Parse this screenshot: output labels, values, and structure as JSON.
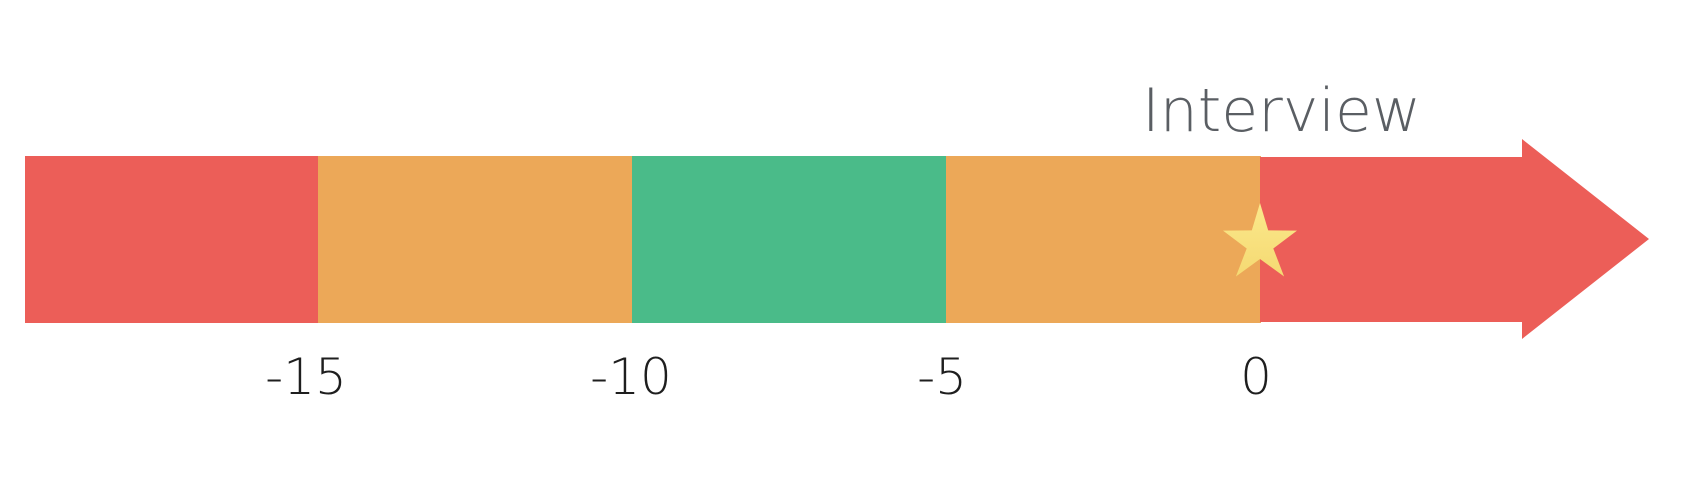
{
  "diagram": {
    "marker_label": "Interview",
    "ticks": [
      "-15",
      "-10",
      "-5",
      "0"
    ],
    "segments": [
      {
        "zone": "red",
        "color": "#ec5e58"
      },
      {
        "zone": "orange",
        "color": "#eca858"
      },
      {
        "zone": "green",
        "color": "#4abb89"
      },
      {
        "zone": "orange",
        "color": "#eca858"
      },
      {
        "zone": "red",
        "color": "#ec5e58"
      }
    ],
    "star_color": "#f9e07e",
    "star_icon": "star-icon"
  }
}
